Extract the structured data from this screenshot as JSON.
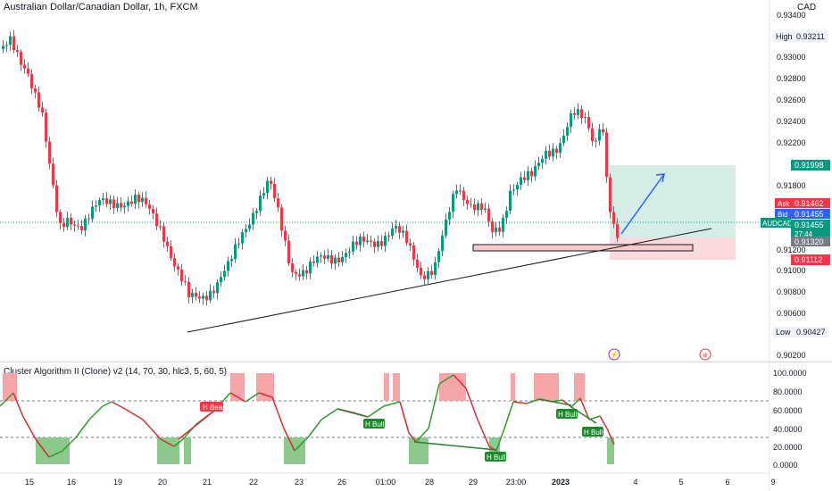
{
  "chart_title": "Australian Dollar/Canadian Dollar, 1h, FXCM",
  "currency_unit": "CAD",
  "symbol": "AUDCAD",
  "price_axis": {
    "ticks": [
      "0.93400",
      "0.93000",
      "0.92800",
      "0.92600",
      "0.92400",
      "0.92200",
      "0.91800",
      "0.91200",
      "0.91000",
      "0.90800",
      "0.90600",
      "0.90200"
    ]
  },
  "price_labels": {
    "high_label": "High",
    "high_value": "0.93211",
    "low_label": "Low",
    "low_value": "0.90427",
    "target": "0.91998",
    "ask_label": "Ask",
    "ask_value": "0.91462",
    "bid_label": "Bid",
    "bid_value": "0.91455",
    "last_value": "0.91455",
    "countdown": "27:44",
    "entry": "0.91320",
    "stop": "0.91112"
  },
  "indicator": {
    "label": "Cluster Algorithm II (Clone) v2 (14, 70, 30, hlc3, 5, 60, 5)",
    "ticks": [
      "100.0000",
      "80.0000",
      "60.0000",
      "40.0000",
      "20.0000",
      "0.0000"
    ],
    "annotations": [
      {
        "text": "H Bear",
        "color": "#f23645"
      },
      {
        "text": "H Bull",
        "color": "#089981"
      },
      {
        "text": "H Bull",
        "color": "#089981"
      },
      {
        "text": "H Bull",
        "color": "#089981"
      },
      {
        "text": "H Bull",
        "color": "#089981"
      }
    ]
  },
  "time_axis": [
    "15",
    "16",
    "19",
    "20",
    "21",
    "22",
    "23",
    "26",
    "01:00",
    "28",
    "29",
    "23:00",
    "2023",
    "4",
    "5",
    "6",
    "9"
  ],
  "colors": {
    "bull": "#089981",
    "bear": "#f23645",
    "target_zone": "#d4ede6",
    "stop_zone": "#fbd9dc",
    "arrow": "#2962ff",
    "zone_box": "#f5b5b8",
    "osc_line_up": "#2e9a2e",
    "osc_line_down": "#d32f2f"
  }
}
